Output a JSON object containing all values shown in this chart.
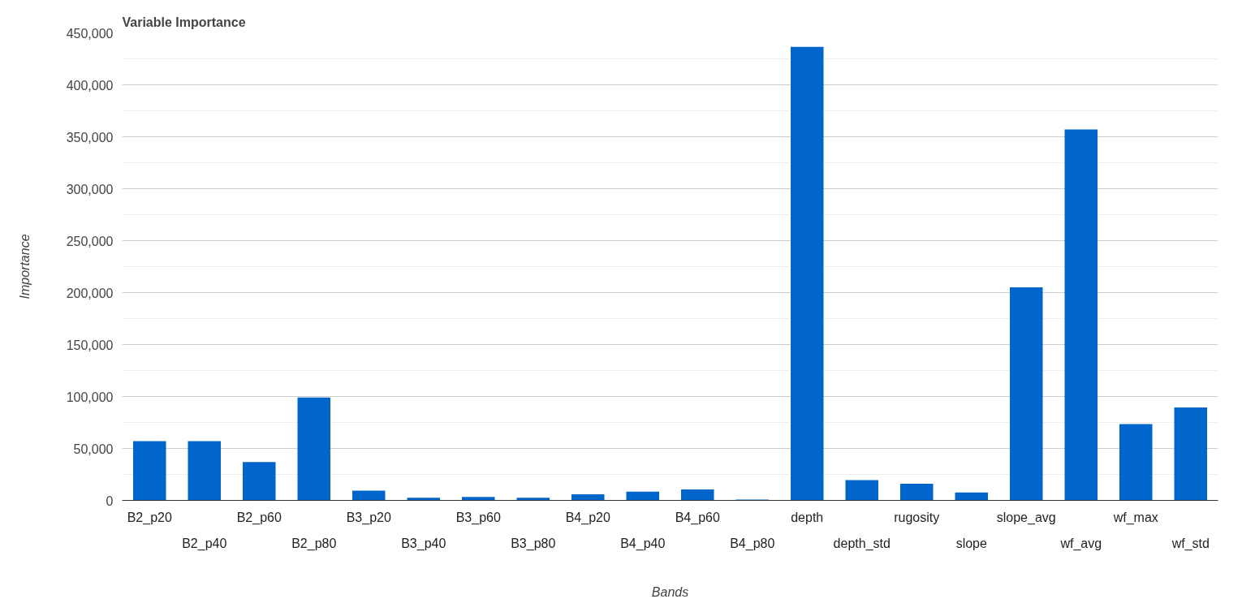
{
  "chart_data": {
    "type": "bar",
    "title": "Variable Importance",
    "xlabel": "Bands",
    "ylabel": "Importance",
    "categories": [
      "B2_p20",
      "B2_p40",
      "B2_p60",
      "B2_p80",
      "B3_p20",
      "B3_p40",
      "B3_p60",
      "B3_p80",
      "B4_p20",
      "B4_p40",
      "B4_p60",
      "B4_p80",
      "depth",
      "depth_std",
      "rugosity",
      "slope",
      "slope_avg",
      "wf_avg",
      "wf_max",
      "wf_std"
    ],
    "values": [
      57000,
      57000,
      37000,
      99000,
      9300,
      2500,
      3400,
      2500,
      5900,
      8400,
      10500,
      800,
      436500,
      19500,
      16000,
      7600,
      205000,
      357000,
      73500,
      89500
    ],
    "color": "#0066cc",
    "ylim": [
      0,
      450000
    ],
    "yticks": [
      {
        "value": 0,
        "label": "0"
      },
      {
        "value": 50000,
        "label": "50,000"
      },
      {
        "value": 100000,
        "label": "100,000"
      },
      {
        "value": 150000,
        "label": "150,000"
      },
      {
        "value": 200000,
        "label": "200,000"
      },
      {
        "value": 250000,
        "label": "250,000"
      },
      {
        "value": 300000,
        "label": "300,000"
      },
      {
        "value": 350000,
        "label": "350,000"
      },
      {
        "value": 400000,
        "label": "400,000"
      },
      {
        "value": 450000,
        "label": "450,000"
      }
    ],
    "grid": "y"
  }
}
